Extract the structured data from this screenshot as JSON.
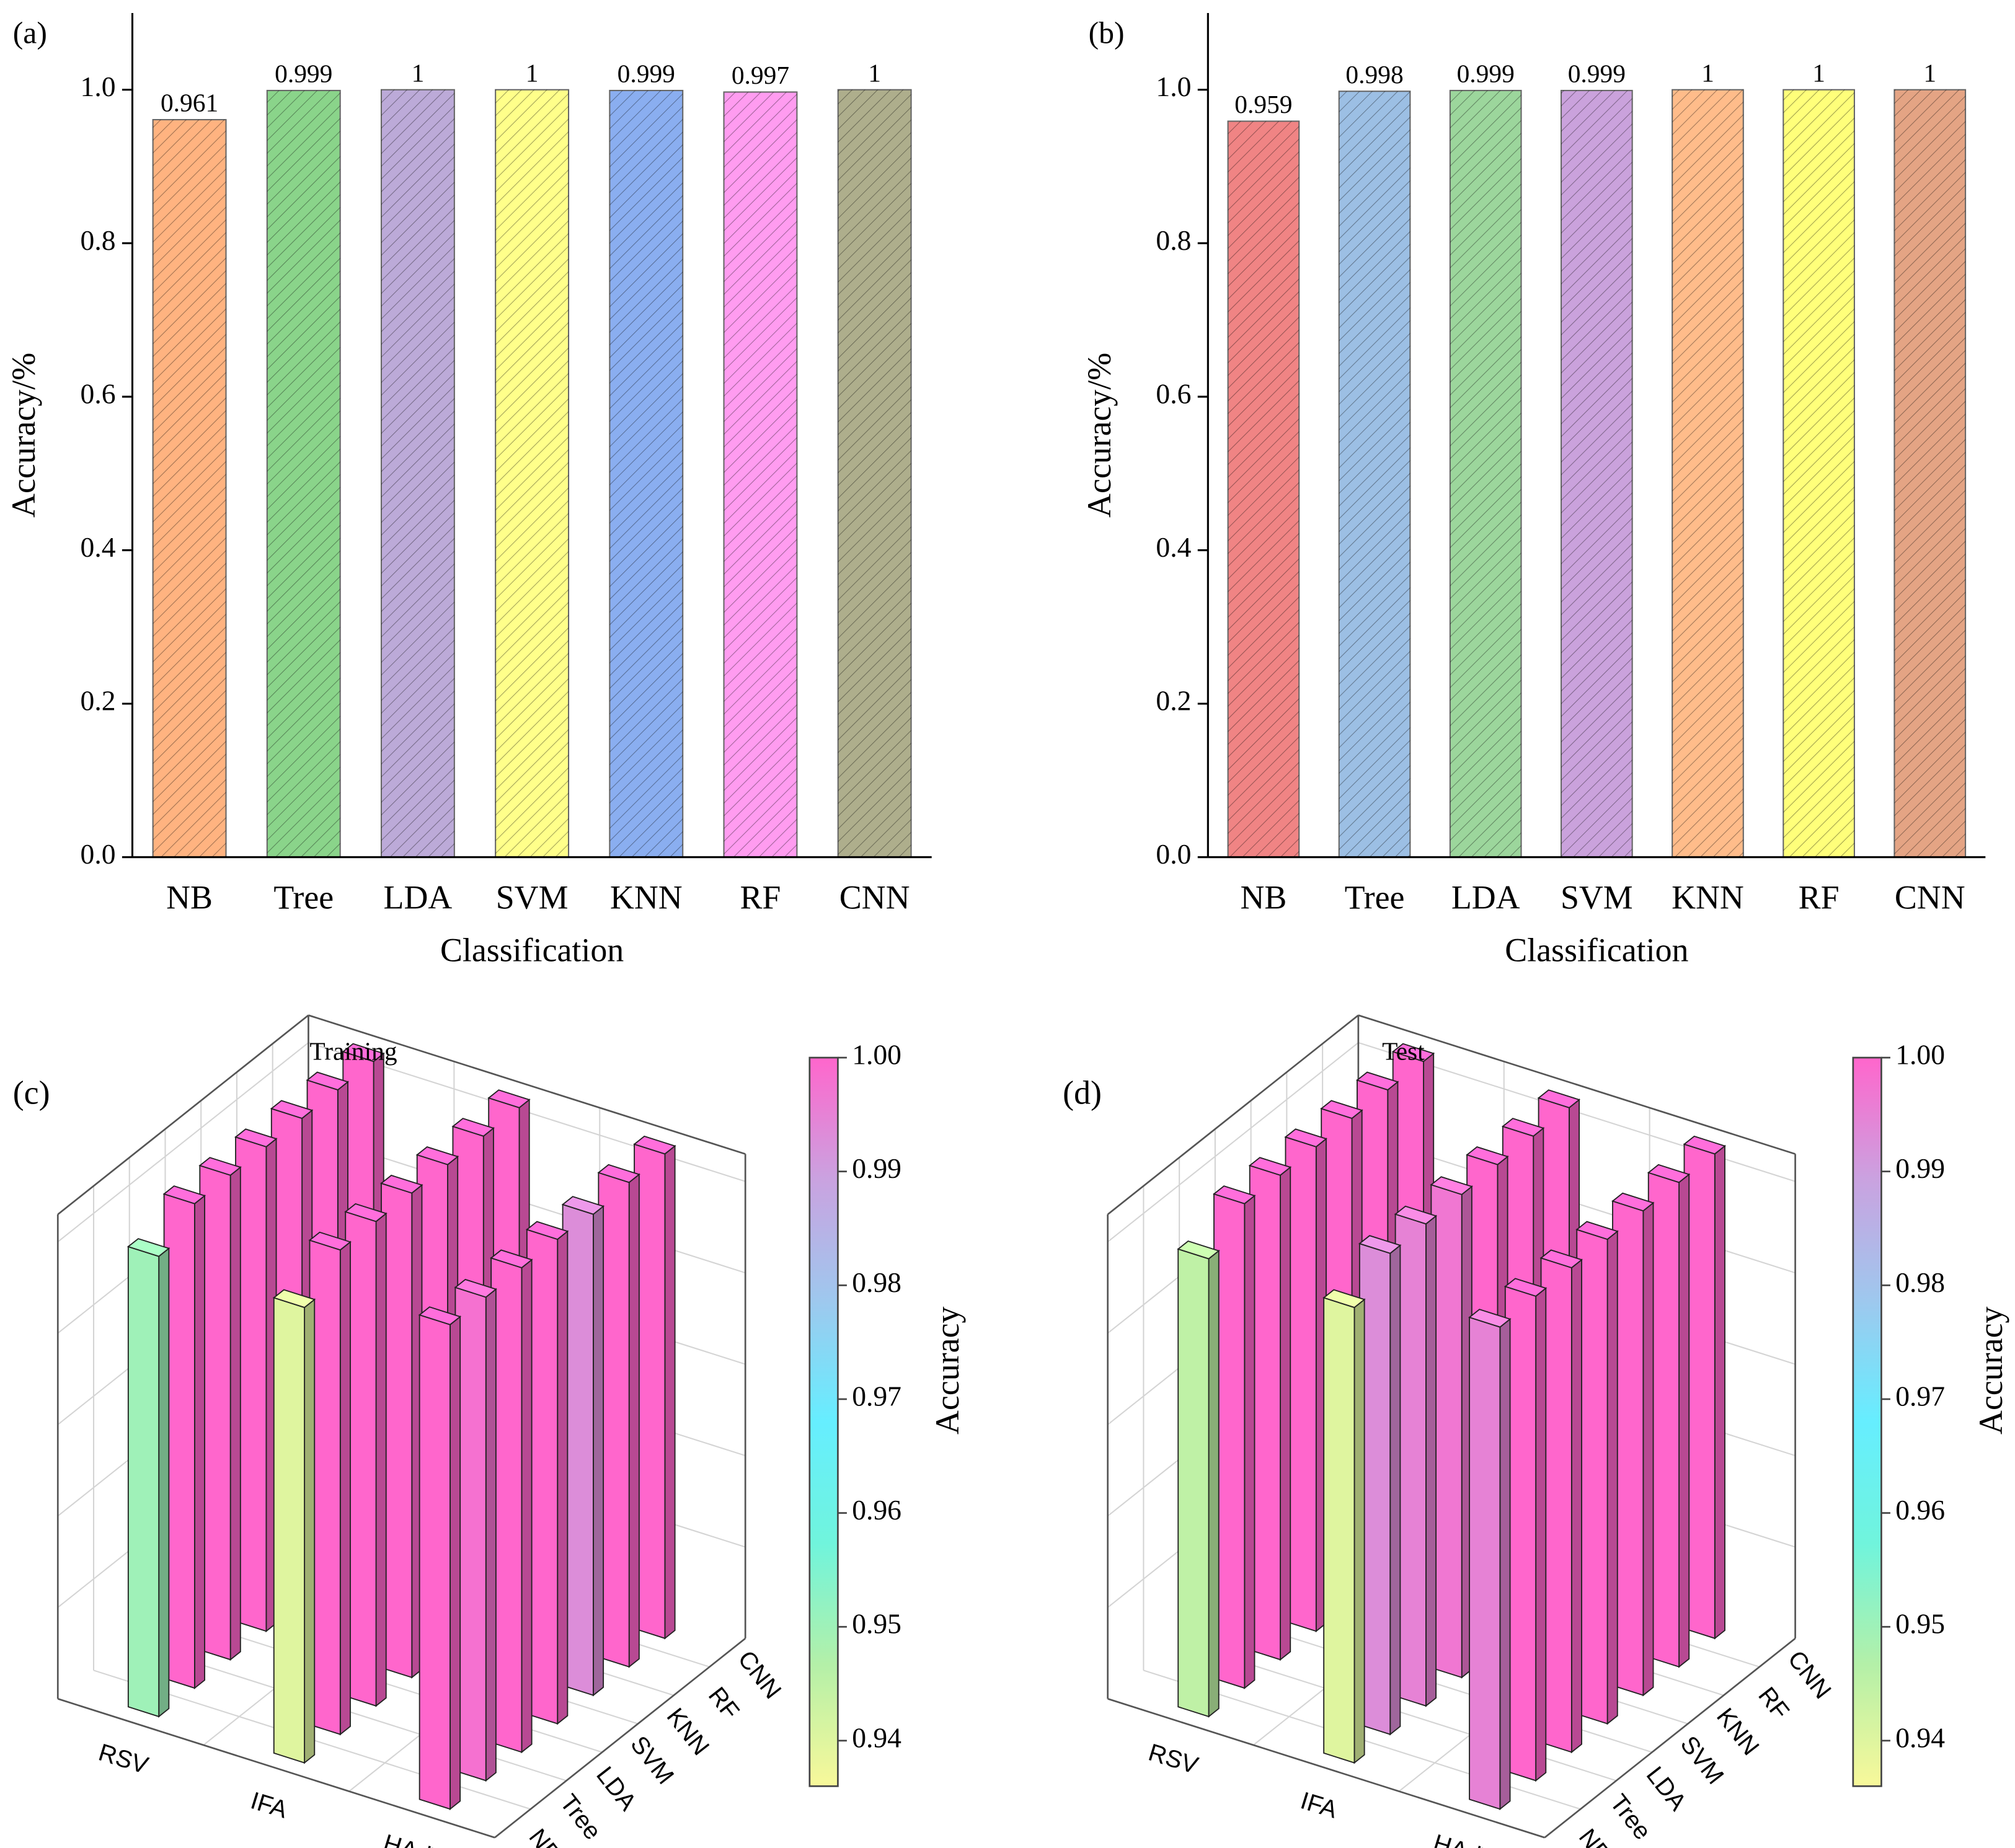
{
  "chart_data": [
    {
      "type": "bar",
      "label": "(a)",
      "xlabel": "Classification",
      "ylabel": "Accuracy/%",
      "categories": [
        "NB",
        "Tree",
        "LDA",
        "SVM",
        "KNN",
        "RF",
        "CNN"
      ],
      "values": [
        0.961,
        0.999,
        1,
        1,
        0.999,
        0.997,
        1
      ],
      "colors": [
        "#ffb380",
        "#8ad48a",
        "#bcaad8",
        "#ffff8a",
        "#8aaef0",
        "#ff9cf0",
        "#aeae8c"
      ],
      "hatch": true,
      "ylim": [
        0,
        1.1
      ],
      "yticks": [
        {
          "value": 0,
          "label": "0.0"
        },
        0.2,
        0.4,
        0.6,
        0.8,
        {
          "value": 1,
          "label": "1.0"
        }
      ]
    },
    {
      "type": "bar",
      "label": "(b)",
      "xlabel": "Classification",
      "ylabel": "Accuracy/%",
      "categories": [
        "NB",
        "Tree",
        "LDA",
        "SVM",
        "KNN",
        "RF",
        "CNN"
      ],
      "values": [
        0.959,
        0.998,
        0.999,
        0.999,
        1,
        1,
        1
      ],
      "colors": [
        "#f08484",
        "#9cbfe4",
        "#9cd69c",
        "#caa2dc",
        "#ffbc8a",
        "#ffff7a",
        "#e4a484"
      ],
      "hatch": true,
      "ylim": [
        0,
        1.1
      ],
      "yticks": [
        {
          "value": 0,
          "label": "0.0"
        },
        0.2,
        0.4,
        0.6,
        0.8,
        {
          "value": 1,
          "label": "1.0"
        }
      ]
    },
    {
      "type": "bar3d",
      "label": "(c)",
      "title": "Training",
      "colorbar_label": "Accuracy",
      "x": [
        "RSV",
        "IFA",
        "HAdV"
      ],
      "y": [
        "NB",
        "Tree",
        "LDA",
        "SVM",
        "KNN",
        "RF",
        "CNN"
      ],
      "values": [
        [
          0.95,
          1,
          1,
          1,
          1,
          1,
          1
        ],
        [
          0.94,
          1,
          1,
          1,
          1,
          1,
          1
        ],
        [
          1,
          0.998,
          1,
          1,
          0.993,
          1,
          1
        ]
      ],
      "zlim": [
        0,
        1
      ],
      "clim": [
        0.936,
        1
      ],
      "cticks": [
        {
          "value": 1,
          "label": "1.00"
        },
        0.99,
        0.98,
        0.97,
        0.96,
        0.95,
        0.94
      ],
      "colormap": [
        "#f8f89a",
        "#b4f0a8",
        "#70f4dc",
        "#66eeff",
        "#9ec8ee",
        "#caa2e0",
        "#ff66cc"
      ]
    },
    {
      "type": "bar3d",
      "label": "(d)",
      "title": "Test",
      "colorbar_label": "Accuracy",
      "x": [
        "RSV",
        "IFA",
        "HAdV"
      ],
      "y": [
        "NB",
        "Tree",
        "LDA",
        "SVM",
        "KNN",
        "RF",
        "CNN"
      ],
      "values": [
        [
          0.945,
          1,
          1,
          1,
          1,
          1,
          1
        ],
        [
          0.94,
          0.993,
          0.995,
          0.997,
          1,
          1,
          1
        ],
        [
          0.995,
          1,
          1,
          1,
          1,
          1,
          1
        ]
      ],
      "zlim": [
        0,
        1
      ],
      "clim": [
        0.936,
        1
      ],
      "cticks": [
        {
          "value": 1,
          "label": "1.00"
        },
        0.99,
        0.98,
        0.97,
        0.96,
        0.95,
        0.94
      ],
      "colormap": [
        "#f8f89a",
        "#b4f0a8",
        "#70f4dc",
        "#66eeff",
        "#9ec8ee",
        "#caa2e0",
        "#ff66cc"
      ]
    }
  ]
}
